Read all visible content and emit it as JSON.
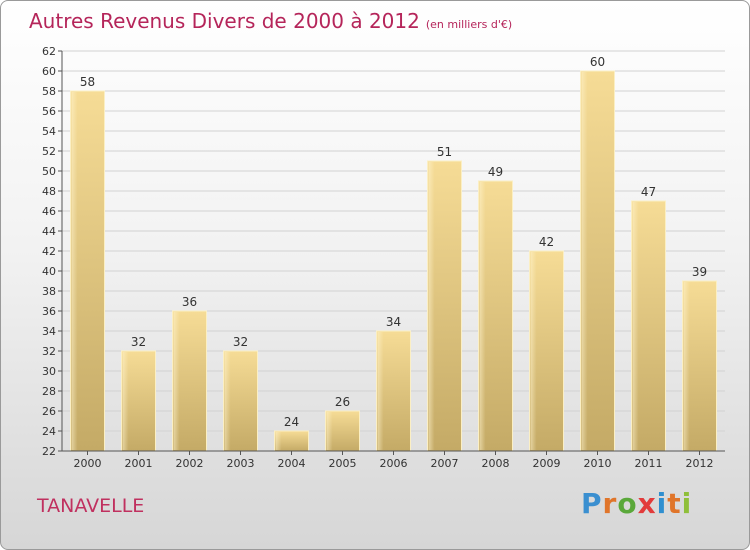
{
  "title": "Autres Revenus Divers de 2000 à 2012",
  "subtitle": "(en milliers d'€)",
  "location": "TANAVELLE",
  "brand": "Proxiti",
  "brand_colors": [
    "#3a8fd0",
    "#e0752a",
    "#5aa83a",
    "#e23b3b",
    "#2f8fd0",
    "#e0752a",
    "#8fbf3a"
  ],
  "chart_data": {
    "type": "bar",
    "title": "Autres Revenus Divers de 2000 à 2012",
    "subtitle": "(en milliers d'€)",
    "categories": [
      "2000",
      "2001",
      "2002",
      "2003",
      "2004",
      "2005",
      "2006",
      "2007",
      "2008",
      "2009",
      "2010",
      "2011",
      "2012"
    ],
    "values": [
      58,
      32,
      36,
      32,
      24,
      26,
      34,
      51,
      49,
      42,
      60,
      47,
      39
    ],
    "ylim": [
      22,
      62
    ],
    "yticks": [
      22,
      24,
      26,
      28,
      30,
      32,
      34,
      36,
      38,
      40,
      42,
      44,
      46,
      48,
      50,
      52,
      54,
      56,
      58,
      60,
      62
    ],
    "grid": true,
    "bar_color": "#e9cf86"
  }
}
